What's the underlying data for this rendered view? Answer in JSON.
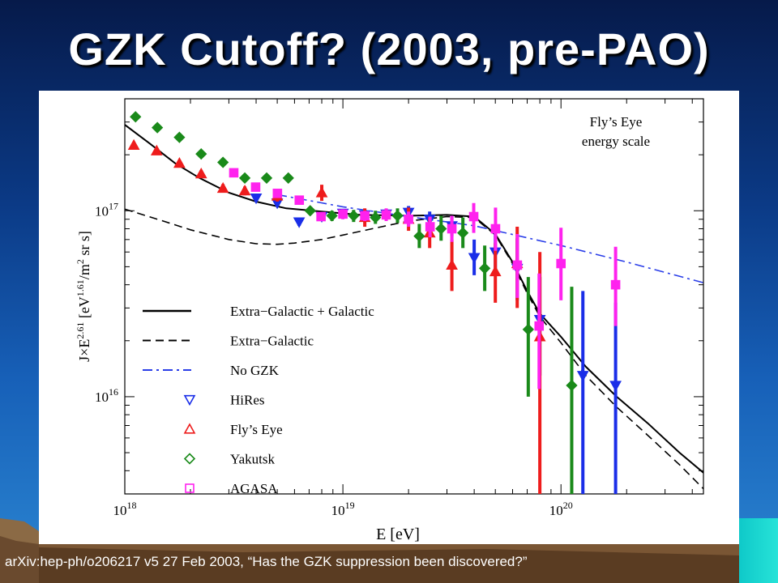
{
  "slide": {
    "title": "GZK Cutoff? (2003, pre-PAO)",
    "caption": "arXiv:hep-ph/o206217  v5 27 Feb 2003, “Has the GZK suppression been discovered?”"
  },
  "colors": {
    "hires": "#1a2ee8",
    "flyseye": "#ee1c1c",
    "yakutsk": "#1a8a1a",
    "agasa": "#ff22ee",
    "nogzk": "#2a3ee8",
    "background_top": "#061a4a",
    "background_bottom": "#2b86d2"
  },
  "chart_data": {
    "type": "scatter",
    "annotation": [
      "Fly’s Eye",
      "energy scale"
    ],
    "xlabel": "E  [eV]",
    "ylabel": "J×E^2.61 [eV^1.61/m^2 sr s]",
    "x_scale": "log",
    "y_scale": "log",
    "xlim": [
      1e+18,
      4.5e+20
    ],
    "ylim": [
      3000000000000000.0,
      4e+17
    ],
    "x_ticks": [
      {
        "value": 1e+18,
        "label": "10^18"
      },
      {
        "value": 1e+19,
        "label": "10^19"
      },
      {
        "value": 1e+20,
        "label": "10^20"
      }
    ],
    "y_ticks": [
      {
        "value": 1e+16,
        "label": "10^16"
      },
      {
        "value": 1e+17,
        "label": "10^17"
      }
    ],
    "legend_position": "lower-left",
    "curves": [
      {
        "name": "Extra−Galactic + Galactic",
        "style": "solid",
        "x": [
          1e+18,
          1.3e+18,
          1.7e+18,
          2.2e+18,
          3e+18,
          4e+18,
          5.5e+18,
          8e+18,
          1.2e+19,
          2e+19,
          3e+19,
          4e+19,
          5e+19,
          6e+19,
          7e+19,
          8e+19,
          1e+20,
          1.3e+20,
          1.8e+20,
          2.5e+20,
          3.5e+20,
          4.5e+20
        ],
        "y": [
          2.9e+17,
          2.3e+17,
          1.8e+17,
          1.5e+17,
          1.25e+17,
          1.12e+17,
          1.03e+17,
          9.9e+16,
          9.5e+16,
          9.4e+16,
          9.5e+16,
          9.3e+16,
          7.5e+16,
          5.3e+16,
          3.7e+16,
          2.8e+16,
          2.1e+16,
          1.45e+16,
          1e+16,
          7200000000000000.0,
          5000000000000000.0,
          3900000000000000.0
        ]
      },
      {
        "name": "Extra−Galactic",
        "style": "dashed",
        "x": [
          1e+18,
          1.5e+18,
          2e+18,
          3e+18,
          4e+18,
          5e+18,
          6e+18,
          8e+18,
          1e+19,
          1.5e+19,
          2e+19,
          3e+19,
          4e+19,
          5e+19,
          6e+19,
          7e+19,
          8e+19,
          1e+20,
          1.3e+20,
          1.8e+20,
          2.5e+20,
          3.5e+20,
          4.5e+20
        ],
        "y": [
          1.02e+17,
          8.8e+16,
          7.9e+16,
          7e+16,
          6.65e+16,
          6.6e+16,
          6.7e+16,
          7e+16,
          7.4e+16,
          8.2e+16,
          8.8e+16,
          9.3e+16,
          9.2e+16,
          7.4e+16,
          5.2e+16,
          3.6e+16,
          2.7e+16,
          1.95e+16,
          1.3e+16,
          8800000000000000.0,
          6200000000000000.0,
          4300000000000000.0,
          3200000000000000.0
        ]
      },
      {
        "name": "No GZK",
        "style": "dash-dot",
        "x": [
          5e+18,
          1e+19,
          2e+19,
          4e+19,
          1e+20,
          2e+20,
          4.5e+20
        ],
        "y": [
          1.22e+17,
          1.05e+17,
          9.3e+16,
          8.3e+16,
          6.5e+16,
          5.3e+16,
          4.1e+16
        ]
      }
    ],
    "series": [
      {
        "name": "HiRes",
        "marker": "triangle-down",
        "points": [
          {
            "x": 4e+18,
            "y": 1.17e+17,
            "lo": 1.13e+17,
            "hi": 1.21e+17
          },
          {
            "x": 5e+18,
            "y": 1.1e+17,
            "lo": 1.06e+17,
            "hi": 1.14e+17
          },
          {
            "x": 6.3e+18,
            "y": 8.7e+16,
            "lo": 8.3e+16,
            "hi": 9.1e+16
          },
          {
            "x": 8e+18,
            "y": 9.3e+16,
            "lo": 8.9e+16,
            "hi": 9.7e+16
          },
          {
            "x": 1e+19,
            "y": 9.7e+16,
            "lo": 9.3e+16,
            "hi": 1.01e+17
          },
          {
            "x": 1.26e+19,
            "y": 9.5e+16,
            "lo": 9e+16,
            "hi": 1e+17
          },
          {
            "x": 1.58e+19,
            "y": 9.6e+16,
            "lo": 9e+16,
            "hi": 1.02e+17
          },
          {
            "x": 2e+19,
            "y": 9.8e+16,
            "lo": 9.1e+16,
            "hi": 1.06e+17
          },
          {
            "x": 2.5e+19,
            "y": 9e+16,
            "lo": 8.2e+16,
            "hi": 9.9e+16
          },
          {
            "x": 3.16e+19,
            "y": 8.3e+16,
            "lo": 7.3e+16,
            "hi": 9.4e+16
          },
          {
            "x": 4e+19,
            "y": 5.6e+16,
            "lo": 4.5e+16,
            "hi": 7e+16
          },
          {
            "x": 5e+19,
            "y": 6e+16,
            "lo": 4.5e+16,
            "hi": 8e+16
          },
          {
            "x": 6.3e+19,
            "y": 4.9e+16,
            "lo": 3.3e+16,
            "hi": 7.1e+16
          },
          {
            "x": 8e+19,
            "y": 2.6e+16,
            "lo": 1.3e+16,
            "hi": 4.4e+16
          },
          {
            "x": 1.26e+20,
            "y": 1.3e+16,
            "lo": 3000000000000000.0,
            "hi": 3.7e+16
          },
          {
            "x": 1.78e+20,
            "y": 1.15e+16,
            "lo": 3000000000000000.0,
            "hi": 3.2e+16
          }
        ]
      },
      {
        "name": "Fly’s Eye",
        "marker": "triangle-up",
        "points": [
          {
            "x": 1.1e+18,
            "y": 2.25e+17,
            "lo": 2.17e+17,
            "hi": 2.33e+17
          },
          {
            "x": 1.4e+18,
            "y": 2.1e+17,
            "lo": 2.03e+17,
            "hi": 2.17e+17
          },
          {
            "x": 1.78e+18,
            "y": 1.8e+17,
            "lo": 1.73e+17,
            "hi": 1.87e+17
          },
          {
            "x": 2.24e+18,
            "y": 1.58e+17,
            "lo": 1.51e+17,
            "hi": 1.65e+17
          },
          {
            "x": 2.82e+18,
            "y": 1.32e+17,
            "lo": 1.25e+17,
            "hi": 1.39e+17
          },
          {
            "x": 3.55e+18,
            "y": 1.28e+17,
            "lo": 1.21e+17,
            "hi": 1.35e+17
          },
          {
            "x": 5e+18,
            "y": 1.2e+17,
            "lo": 1.12e+17,
            "hi": 1.29e+17
          },
          {
            "x": 8e+18,
            "y": 1.25e+17,
            "lo": 1.13e+17,
            "hi": 1.38e+17
          },
          {
            "x": 1.26e+19,
            "y": 9.2e+16,
            "lo": 8.2e+16,
            "hi": 1.03e+17
          },
          {
            "x": 2e+19,
            "y": 9e+16,
            "lo": 7.8e+16,
            "hi": 1.04e+17
          },
          {
            "x": 2.5e+19,
            "y": 7.6e+16,
            "lo": 6.3e+16,
            "hi": 9.2e+16
          },
          {
            "x": 3.16e+19,
            "y": 5.1e+16,
            "lo": 3.7e+16,
            "hi": 7e+16
          },
          {
            "x": 5e+19,
            "y": 4.7e+16,
            "lo": 3.2e+16,
            "hi": 6.7e+16
          },
          {
            "x": 6.3e+19,
            "y": 5.2e+16,
            "lo": 3e+16,
            "hi": 8.2e+16
          },
          {
            "x": 8e+19,
            "y": 2.1e+16,
            "lo": 3000000000000000.0,
            "hi": 6e+16
          }
        ]
      },
      {
        "name": "Yakutsk",
        "marker": "diamond",
        "points": [
          {
            "x": 1.12e+18,
            "y": 3.2e+17,
            "lo": 3.1e+17,
            "hi": 3.3e+17
          },
          {
            "x": 1.41e+18,
            "y": 2.8e+17,
            "lo": 2.72e+17,
            "hi": 2.88e+17
          },
          {
            "x": 1.78e+18,
            "y": 2.48e+17,
            "lo": 2.4e+17,
            "hi": 2.56e+17
          },
          {
            "x": 2.24e+18,
            "y": 2.02e+17,
            "lo": 1.95e+17,
            "hi": 2.09e+17
          },
          {
            "x": 2.82e+18,
            "y": 1.82e+17,
            "lo": 1.75e+17,
            "hi": 1.89e+17
          },
          {
            "x": 3.55e+18,
            "y": 1.5e+17,
            "lo": 1.44e+17,
            "hi": 1.56e+17
          },
          {
            "x": 4.47e+18,
            "y": 1.5e+17,
            "lo": 1.44e+17,
            "hi": 1.56e+17
          },
          {
            "x": 5.62e+18,
            "y": 1.5e+17,
            "lo": 1.44e+17,
            "hi": 1.56e+17
          },
          {
            "x": 7.08e+18,
            "y": 1e+17,
            "lo": 9.5e+16,
            "hi": 1.05e+17
          },
          {
            "x": 8.91e+18,
            "y": 9.4e+16,
            "lo": 8.8e+16,
            "hi": 1e+17
          },
          {
            "x": 1.12e+19,
            "y": 9.4e+16,
            "lo": 8.7e+16,
            "hi": 1.01e+17
          },
          {
            "x": 1.41e+19,
            "y": 9.2e+16,
            "lo": 8.5e+16,
            "hi": 1e+17
          },
          {
            "x": 1.78e+19,
            "y": 9.4e+16,
            "lo": 8.6e+16,
            "hi": 1.03e+17
          },
          {
            "x": 2.24e+19,
            "y": 7.3e+16,
            "lo": 6.3e+16,
            "hi": 8.5e+16
          },
          {
            "x": 2.82e+19,
            "y": 8e+16,
            "lo": 6.9e+16,
            "hi": 9.4e+16
          },
          {
            "x": 3.55e+19,
            "y": 7.6e+16,
            "lo": 6.3e+16,
            "hi": 9.2e+16
          },
          {
            "x": 4.47e+19,
            "y": 4.9e+16,
            "lo": 3.7e+16,
            "hi": 6.5e+16
          },
          {
            "x": 7.08e+19,
            "y": 2.3e+16,
            "lo": 1e+16,
            "hi": 4.4e+16
          },
          {
            "x": 1.12e+20,
            "y": 1.15e+16,
            "lo": 3000000000000000.0,
            "hi": 3.9e+16
          }
        ]
      },
      {
        "name": "AGASA",
        "marker": "square",
        "points": [
          {
            "x": 3.16e+18,
            "y": 1.6e+17,
            "lo": 1.55e+17,
            "hi": 1.65e+17
          },
          {
            "x": 3.98e+18,
            "y": 1.34e+17,
            "lo": 1.29e+17,
            "hi": 1.39e+17
          },
          {
            "x": 5.01e+18,
            "y": 1.24e+17,
            "lo": 1.19e+17,
            "hi": 1.29e+17
          },
          {
            "x": 6.31e+18,
            "y": 1.14e+17,
            "lo": 1.09e+17,
            "hi": 1.19e+17
          },
          {
            "x": 7.94e+18,
            "y": 9.3e+16,
            "lo": 8.8e+16,
            "hi": 9.8e+16
          },
          {
            "x": 1e+19,
            "y": 9.6e+16,
            "lo": 9e+16,
            "hi": 1.02e+17
          },
          {
            "x": 1.26e+19,
            "y": 9.4e+16,
            "lo": 8.8e+16,
            "hi": 1e+17
          },
          {
            "x": 1.58e+19,
            "y": 9.5e+16,
            "lo": 8.8e+16,
            "hi": 1.03e+17
          },
          {
            "x": 2e+19,
            "y": 9e+16,
            "lo": 8.2e+16,
            "hi": 9.9e+16
          },
          {
            "x": 2.51e+19,
            "y": 8.2e+16,
            "lo": 7.2e+16,
            "hi": 9.3e+16
          },
          {
            "x": 3.16e+19,
            "y": 8e+16,
            "lo": 6.8e+16,
            "hi": 9.4e+16
          },
          {
            "x": 3.98e+19,
            "y": 9.3e+16,
            "lo": 7.6e+16,
            "hi": 1.1e+17
          },
          {
            "x": 5.01e+19,
            "y": 8e+16,
            "lo": 6.1e+16,
            "hi": 1.04e+17
          },
          {
            "x": 6.31e+19,
            "y": 5.1e+16,
            "lo": 3.4e+16,
            "hi": 7.5e+16
          },
          {
            "x": 7.94e+19,
            "y": 2.4e+16,
            "lo": 1.1e+16,
            "hi": 4.6e+16
          },
          {
            "x": 1e+20,
            "y": 5.2e+16,
            "lo": 3.3e+16,
            "hi": 8.1e+16
          },
          {
            "x": 1.78e+20,
            "y": 4e+16,
            "lo": 2.4e+16,
            "hi": 6.4e+16
          }
        ]
      }
    ]
  }
}
